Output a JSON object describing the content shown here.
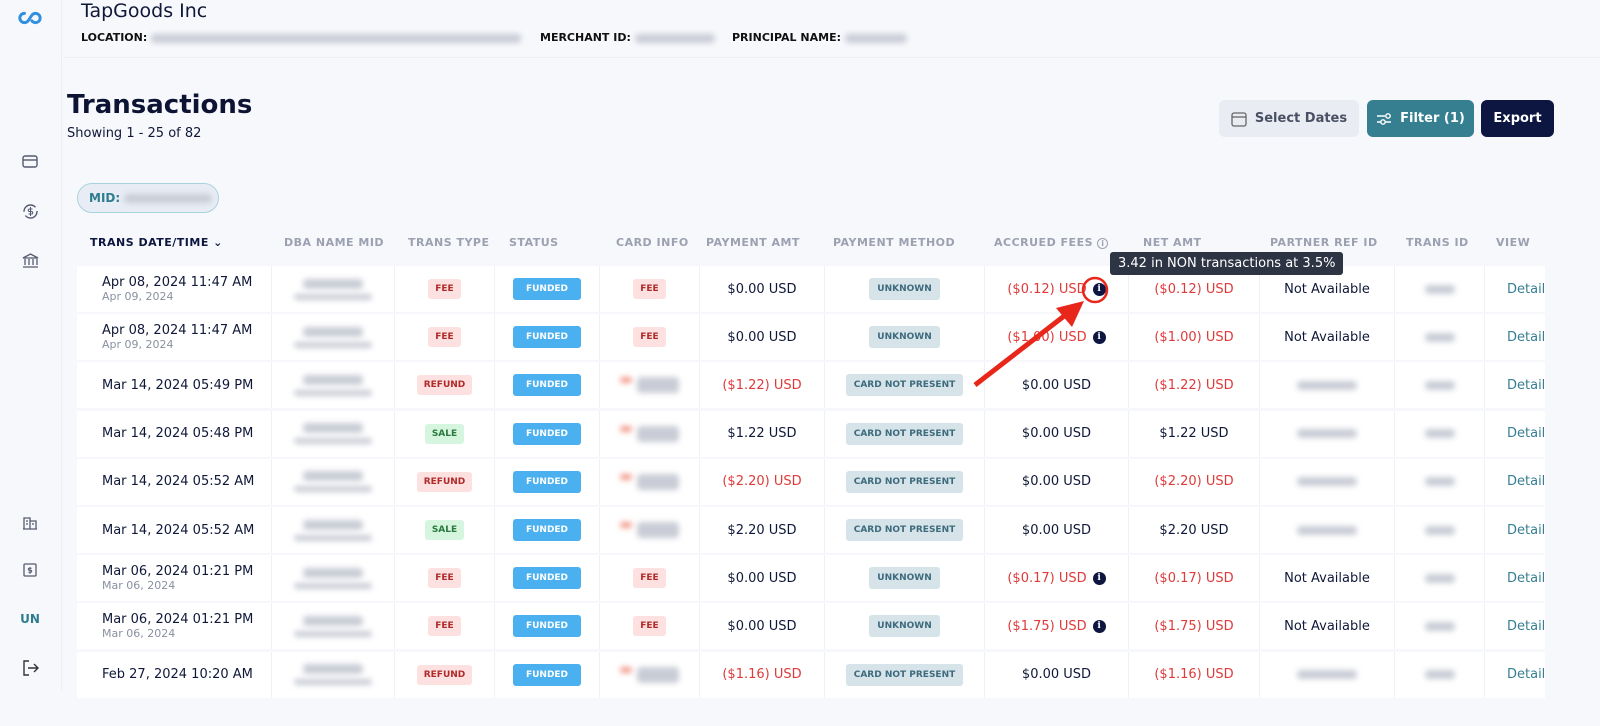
{
  "app": {
    "company": "TapGoods Inc",
    "location_label": "LOCATION:",
    "merchant_label": "MERCHANT ID:",
    "principal_label": "PRINCIPAL NAME:",
    "user_initials": "UN"
  },
  "page": {
    "title": "Transactions",
    "showing": "Showing 1 - 25 of 82",
    "mid_label": "MID:"
  },
  "toolbar": {
    "select_dates": "Select Dates",
    "filter": "Filter (1)",
    "export": "Export"
  },
  "columns": [
    "TRANS DATE/TIME",
    "DBA NAME MID",
    "TRANS TYPE",
    "STATUS",
    "CARD INFO",
    "PAYMENT AMT",
    "PAYMENT METHOD",
    "ACCRUED FEES",
    "NET AMT",
    "PARTNER REF ID",
    "TRANS ID",
    "VIEW"
  ],
  "tooltip": "3.42 in NON transactions at 3.5%",
  "colors": {
    "accent": "#357f91",
    "dark": "#0c1640",
    "negative": "#e03a3a",
    "funded": "#4ab0f0"
  },
  "rows": [
    {
      "date": "Apr 08, 2024 11:47 AM",
      "sub": "Apr 09, 2024",
      "type": "FEE",
      "status": "FUNDED",
      "card": "FEE",
      "payment": "$0.00 USD",
      "method": "UNKNOWN",
      "fees": "($0.12) USD",
      "fee_info": true,
      "net": "($0.12) USD",
      "partner": "Not Available",
      "view": "Detail"
    },
    {
      "date": "Apr 08, 2024 11:47 AM",
      "sub": "Apr 09, 2024",
      "type": "FEE",
      "status": "FUNDED",
      "card": "FEE",
      "payment": "$0.00 USD",
      "method": "UNKNOWN",
      "fees": "($1.00) USD",
      "fee_info": true,
      "net": "($1.00) USD",
      "partner": "Not Available",
      "view": "Detail"
    },
    {
      "date": "Mar 14, 2024 05:49 PM",
      "sub": "",
      "type": "REFUND",
      "status": "FUNDED",
      "card": "",
      "payment": "($1.22) USD",
      "method": "CARD NOT PRESENT",
      "fees": "$0.00 USD",
      "fee_info": false,
      "net": "($1.22) USD",
      "partner": "",
      "view": "Detail"
    },
    {
      "date": "Mar 14, 2024 05:48 PM",
      "sub": "",
      "type": "SALE",
      "status": "FUNDED",
      "card": "",
      "payment": "$1.22 USD",
      "method": "CARD NOT PRESENT",
      "fees": "$0.00 USD",
      "fee_info": false,
      "net": "$1.22 USD",
      "partner": "",
      "view": "Detail"
    },
    {
      "date": "Mar 14, 2024 05:52 AM",
      "sub": "",
      "type": "REFUND",
      "status": "FUNDED",
      "card": "",
      "payment": "($2.20) USD",
      "method": "CARD NOT PRESENT",
      "fees": "$0.00 USD",
      "fee_info": false,
      "net": "($2.20) USD",
      "partner": "",
      "view": "Detail"
    },
    {
      "date": "Mar 14, 2024 05:52 AM",
      "sub": "",
      "type": "SALE",
      "status": "FUNDED",
      "card": "",
      "payment": "$2.20 USD",
      "method": "CARD NOT PRESENT",
      "fees": "$0.00 USD",
      "fee_info": false,
      "net": "$2.20 USD",
      "partner": "",
      "view": "Detail"
    },
    {
      "date": "Mar 06, 2024 01:21 PM",
      "sub": "Mar 06, 2024",
      "type": "FEE",
      "status": "FUNDED",
      "card": "FEE",
      "payment": "$0.00 USD",
      "method": "UNKNOWN",
      "fees": "($0.17) USD",
      "fee_info": true,
      "net": "($0.17) USD",
      "partner": "Not Available",
      "view": "Detail"
    },
    {
      "date": "Mar 06, 2024 01:21 PM",
      "sub": "Mar 06, 2024",
      "type": "FEE",
      "status": "FUNDED",
      "card": "FEE",
      "payment": "$0.00 USD",
      "method": "UNKNOWN",
      "fees": "($1.75) USD",
      "fee_info": true,
      "net": "($1.75) USD",
      "partner": "Not Available",
      "view": "Detail"
    },
    {
      "date": "Feb 27, 2024 10:20 AM",
      "sub": "",
      "type": "REFUND",
      "status": "FUNDED",
      "card": "",
      "payment": "($1.16) USD",
      "method": "CARD NOT PRESENT",
      "fees": "$0.00 USD",
      "fee_info": false,
      "net": "($1.16) USD",
      "partner": "",
      "view": "Detail"
    }
  ]
}
